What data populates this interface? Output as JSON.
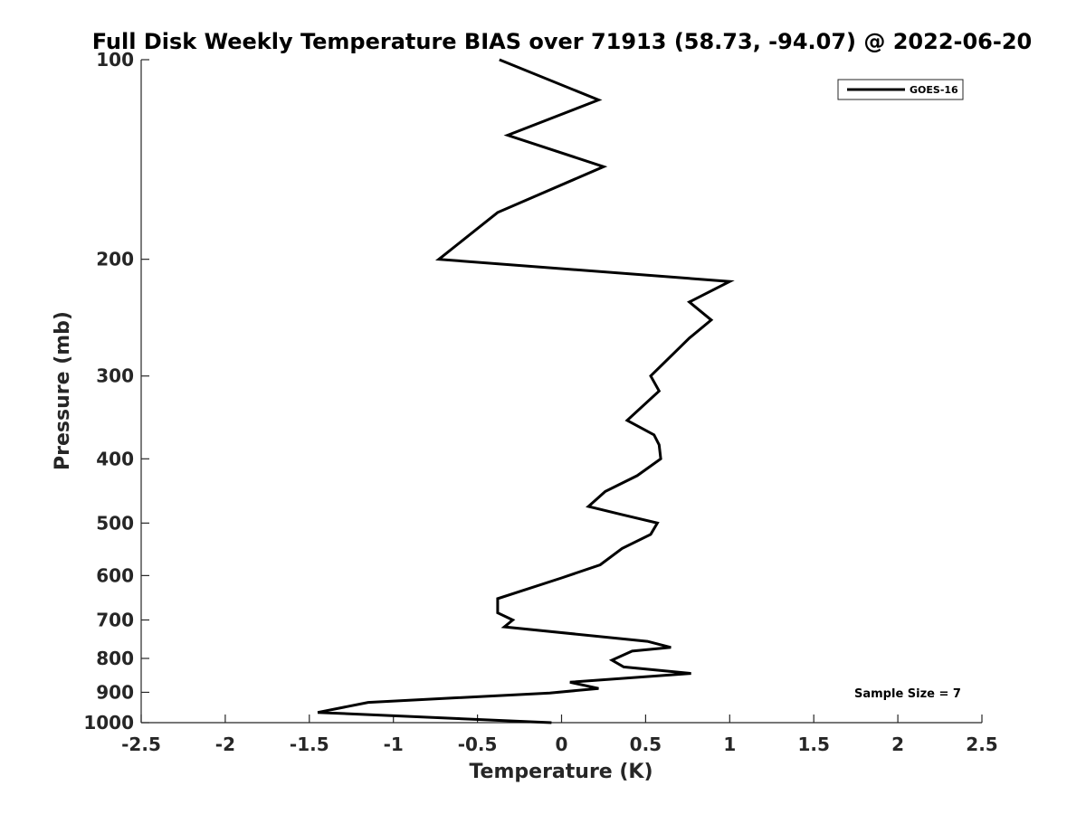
{
  "chart_data": {
    "type": "line",
    "title": "Full Disk Weekly Temperature BIAS over 71913 (58.73, -94.07) @ 2022-06-20",
    "xlabel": "Temperature (K)",
    "ylabel": "Pressure (mb)",
    "xlim": [
      -2.5,
      2.5
    ],
    "ylim": [
      100,
      1000
    ],
    "y_scale": "log",
    "y_reversed": true,
    "x_ticks": [
      "-2.5",
      "-2",
      "-1.5",
      "-1",
      "-0.5",
      "0",
      "0.5",
      "1",
      "1.5",
      "2",
      "2.5"
    ],
    "x_tick_values": [
      -2.5,
      -2,
      -1.5,
      -1,
      -0.5,
      0,
      0.5,
      1,
      1.5,
      2,
      2.5
    ],
    "y_ticks": [
      "100",
      "200",
      "300",
      "400",
      "500",
      "600",
      "700",
      "800",
      "900",
      "1000"
    ],
    "y_tick_values": [
      100,
      200,
      300,
      400,
      500,
      600,
      700,
      800,
      900,
      1000
    ],
    "grid": false,
    "legend_position": "top-right",
    "series": [
      {
        "name": "GOES-16",
        "color": "#000000",
        "x": [
          -0.37,
          0.22,
          -0.32,
          0.25,
          -0.38,
          -0.73,
          1.0,
          0.76,
          0.89,
          0.76,
          0.53,
          0.58,
          0.39,
          0.55,
          0.58,
          0.59,
          0.45,
          0.26,
          0.16,
          0.35,
          0.57,
          0.53,
          0.36,
          0.23,
          0.0,
          -0.38,
          -0.38,
          -0.29,
          -0.34,
          0.51,
          0.65,
          0.42,
          0.3,
          0.37,
          0.77,
          0.05,
          0.22,
          -0.07,
          -1.15,
          -1.45,
          -0.06
        ],
        "y": [
          100,
          115,
          130,
          145,
          170,
          200,
          216,
          232,
          247,
          263,
          300,
          316,
          350,
          368,
          381,
          400,
          424,
          448,
          472,
          485,
          500,
          520,
          546,
          578,
          605,
          650,
          683,
          700,
          717,
          754,
          770,
          780,
          805,
          824,
          843,
          869,
          888,
          902,
          932,
          965,
          1000
        ]
      }
    ],
    "annotations": [
      "Sample Size = 7"
    ]
  }
}
